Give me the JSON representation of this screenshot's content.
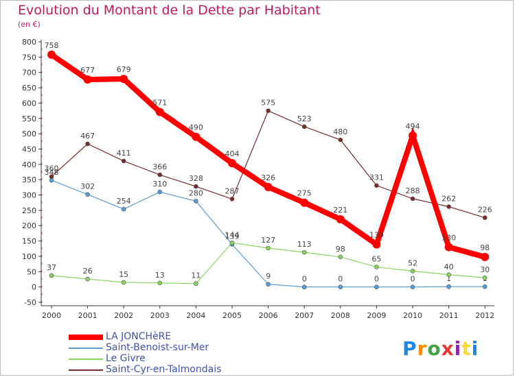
{
  "chart_data": {
    "type": "line",
    "title": "Evolution du Montant de la Dette par Habitant",
    "subtitle": "(en €)",
    "x": [
      "2000",
      "2001",
      "2002",
      "2003",
      "2004",
      "2005",
      "2006",
      "2007",
      "2008",
      "2009",
      "2010",
      "2011",
      "2012"
    ],
    "ylim": [
      -50,
      800
    ],
    "yticks": [
      -50,
      0,
      50,
      100,
      150,
      200,
      250,
      300,
      350,
      400,
      450,
      500,
      550,
      600,
      650,
      700,
      750,
      800
    ],
    "grid": false,
    "legend_position": "bottom-left",
    "series": [
      {
        "name": "LA JONCHèRE",
        "color": "#ff0000",
        "values": [
          758,
          677,
          679,
          571,
          490,
          404,
          326,
          275,
          221,
          139,
          494,
          130,
          98
        ]
      },
      {
        "name": "Saint-Benoist-sur-Mer",
        "color": "#5b9bd5",
        "values": [
          348,
          302,
          254,
          310,
          280,
          139,
          9,
          0,
          0,
          0,
          0,
          1,
          1
        ]
      },
      {
        "name": "Le Givre",
        "color": "#8bd35f",
        "values": [
          37,
          26,
          15,
          13,
          11,
          144,
          127,
          113,
          98,
          65,
          52,
          40,
          30
        ]
      },
      {
        "name": "Saint-Cyr-en-Talmondais",
        "color": "#7a2a2a",
        "values": [
          360,
          467,
          411,
          366,
          328,
          287,
          575,
          523,
          480,
          331,
          288,
          262,
          226
        ]
      }
    ]
  },
  "logo": {
    "letters": [
      "P",
      "r",
      "o",
      "x",
      "i",
      "t",
      "i"
    ]
  }
}
